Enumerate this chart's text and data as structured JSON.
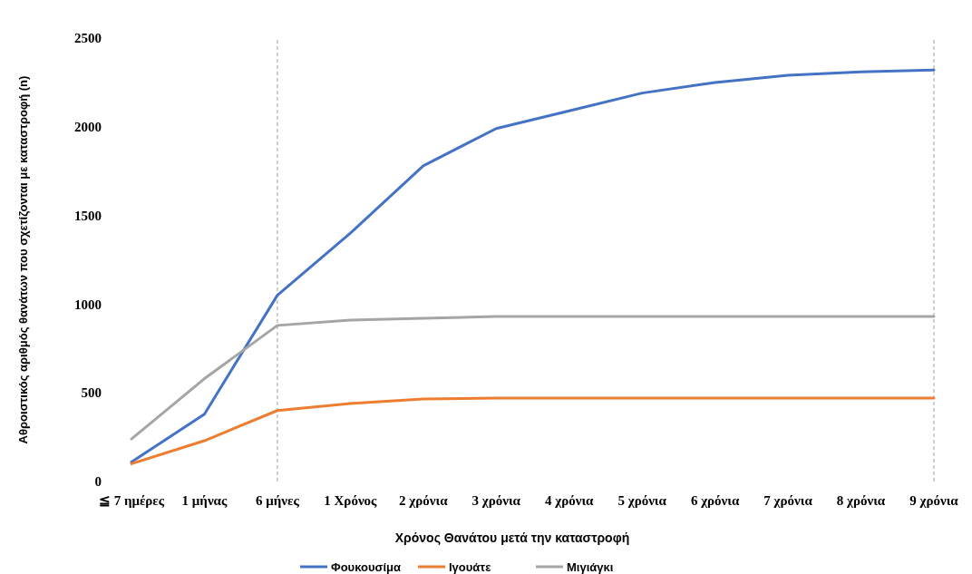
{
  "chart_data": {
    "type": "line",
    "xlabel": "Χρόνος Θανάτου μετά την καταστροφή",
    "ylabel": "Αθροιστικός αριθμός θανάτων που σχετίζονται με καταστροφή (n)",
    "categories": [
      "≦ 7 ημέρες",
      "1 μήνας",
      "6 μήνες",
      "1 Χρόνος",
      "2 χρόνια",
      "3 χρόνια",
      "4 χρόνια",
      "5 χρόνια",
      "6 χρόνια",
      "7 χρόνια",
      "8 χρόνια",
      "9 χρόνια"
    ],
    "series": [
      {
        "name": "Φουκουσίμα",
        "color": "#4472c4",
        "values": [
          110,
          380,
          1050,
          1400,
          1780,
          1990,
          2090,
          2190,
          2250,
          2290,
          2310,
          2320
        ]
      },
      {
        "name": "Ιγουάτε",
        "color": "#ed7d31",
        "values": [
          100,
          230,
          400,
          440,
          465,
          470,
          470,
          470,
          470,
          470,
          470,
          470
        ]
      },
      {
        "name": "Μιγιάγκι",
        "color": "#a5a5a5",
        "values": [
          240,
          580,
          880,
          910,
          920,
          930,
          930,
          930,
          930,
          930,
          930,
          930
        ]
      }
    ],
    "ylim": [
      0,
      2500
    ],
    "yticks": [
      0,
      500,
      1000,
      1500,
      2000,
      2500
    ],
    "ref_lines": [
      {
        "axis": "x",
        "value": "6 μήνες",
        "color": "#a0a0a0",
        "line_style": "dashed"
      },
      {
        "axis": "x",
        "value": "9 χρόνια",
        "color": "#a0a0a0",
        "line_style": "dashed"
      }
    ],
    "legend": "bottom",
    "line_style": "solid"
  }
}
